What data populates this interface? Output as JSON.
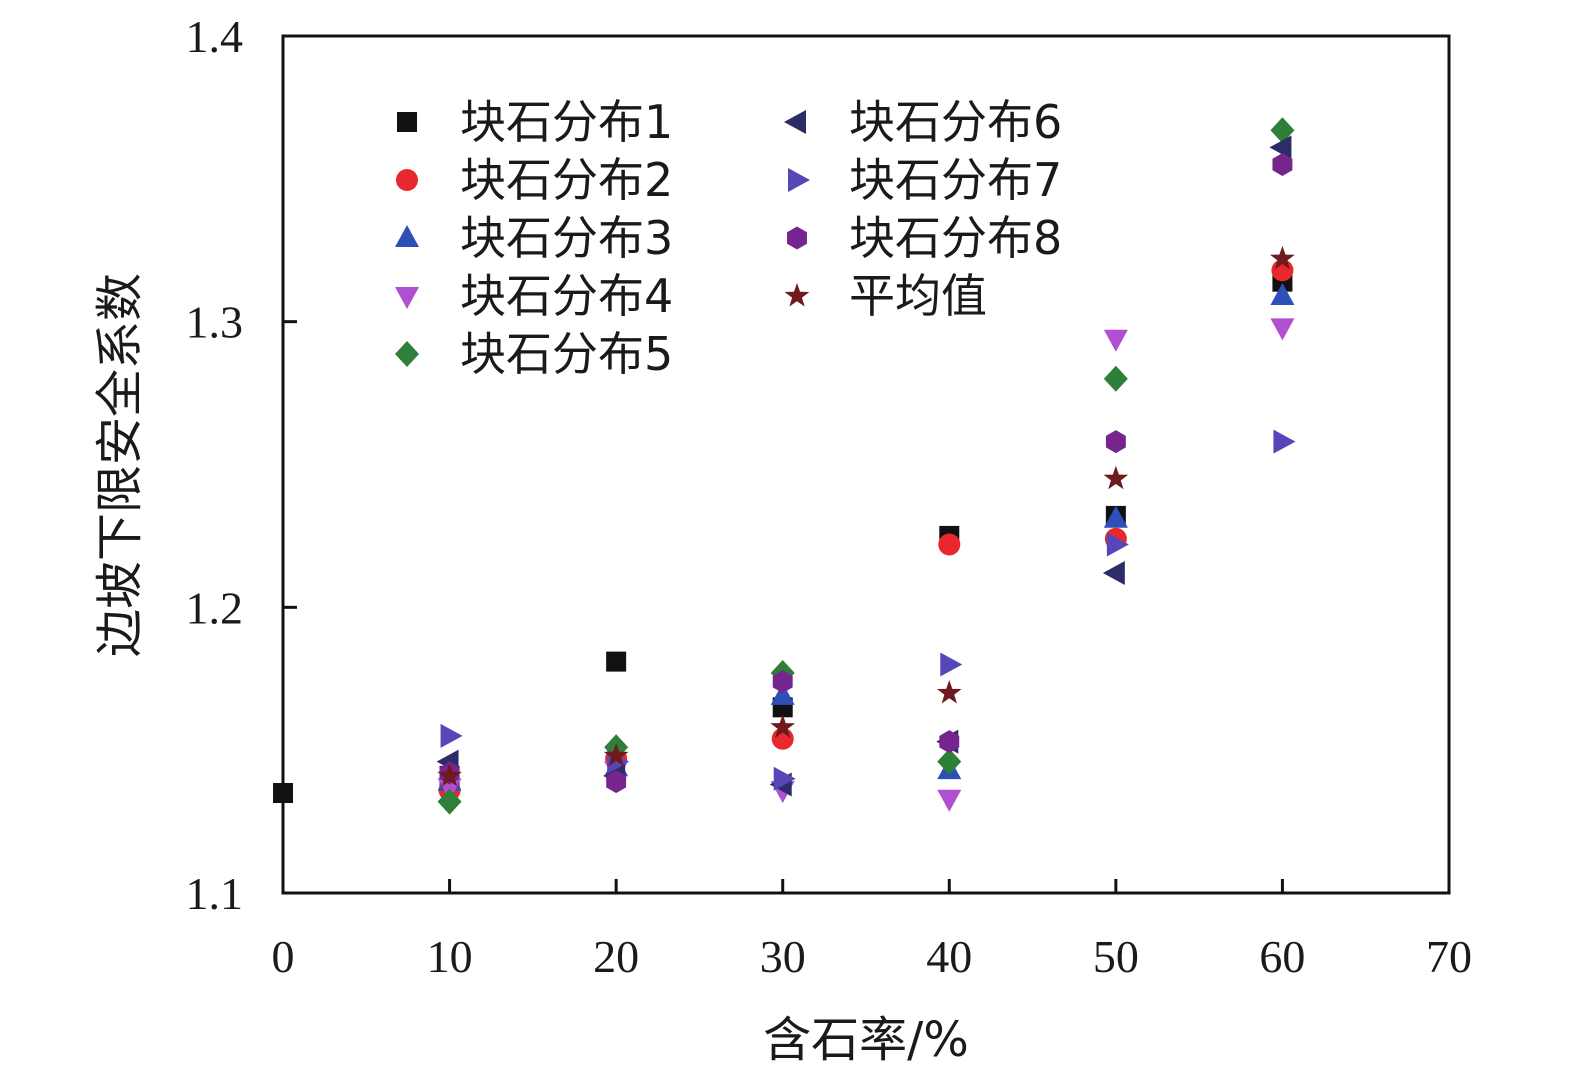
{
  "chart_data": {
    "type": "scatter",
    "xlabel": "含石率/%",
    "ylabel": "边坡下限安全系数",
    "xlim": [
      0,
      70
    ],
    "ylim": [
      1.1,
      1.4
    ],
    "xticks": [
      "0",
      "10",
      "20",
      "30",
      "40",
      "50",
      "60",
      "70"
    ],
    "yticks": [
      "1.1",
      "1.2",
      "1.3",
      "1.4"
    ],
    "grid": false,
    "legend_position": "top-left, two columns",
    "x": [
      0,
      10,
      20,
      30,
      40,
      50,
      60
    ],
    "series": [
      {
        "name": "块石分布1",
        "marker": "square",
        "color": "#111111",
        "values": [
          1.135,
          1.141,
          1.181,
          1.165,
          1.225,
          1.232,
          1.314
        ]
      },
      {
        "name": "块石分布2",
        "marker": "circle",
        "color": "#e8282d",
        "values": [
          null,
          1.136,
          1.147,
          1.154,
          1.222,
          1.224,
          1.318
        ]
      },
      {
        "name": "块石分布3",
        "marker": "triangle-up",
        "color": "#2e4fb8",
        "values": [
          null,
          1.139,
          1.144,
          1.169,
          1.143,
          1.231,
          1.309
        ]
      },
      {
        "name": "块石分布4",
        "marker": "triangle-down",
        "color": "#b04fd0",
        "values": [
          null,
          1.137,
          1.143,
          1.136,
          1.133,
          1.294,
          1.298
        ]
      },
      {
        "name": "块石分布5",
        "marker": "diamond",
        "color": "#2e8039",
        "values": [
          null,
          1.132,
          1.151,
          1.177,
          1.146,
          1.28,
          1.367
        ]
      },
      {
        "name": "块石分布6",
        "marker": "triangle-left",
        "color": "#2b2d68",
        "values": [
          null,
          1.146,
          1.141,
          1.138,
          1.153,
          1.212,
          1.361
        ]
      },
      {
        "name": "块石分布7",
        "marker": "triangle-right",
        "color": "#5547b8",
        "values": [
          null,
          1.155,
          1.146,
          1.14,
          1.18,
          1.222,
          1.258
        ]
      },
      {
        "name": "块石分布8",
        "marker": "hexagon",
        "color": "#76258e",
        "values": [
          null,
          1.142,
          1.139,
          1.174,
          1.153,
          1.258,
          1.355
        ]
      },
      {
        "name": "平均值",
        "marker": "star",
        "color": "#6e1a1f",
        "values": [
          null,
          1.141,
          1.148,
          1.158,
          1.17,
          1.245,
          1.322
        ]
      }
    ]
  }
}
